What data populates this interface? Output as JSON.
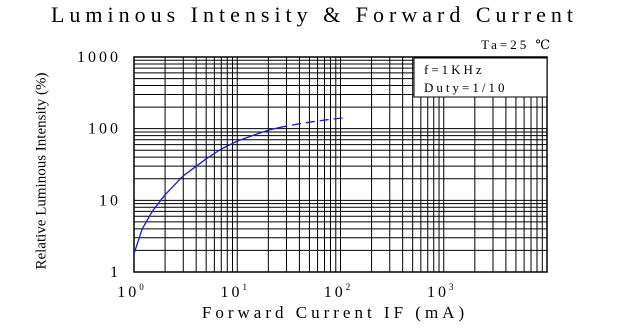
{
  "chart_data": {
    "type": "line",
    "title": "Luminous Intensity & Forward Current",
    "xlabel": "Forward Current IF (mA)",
    "ylabel": "Relative Luminous Intensity (%)",
    "xscale": "log",
    "yscale": "log",
    "xlim": [
      1,
      10000
    ],
    "ylim": [
      1,
      1000
    ],
    "grid": true,
    "x_ticks": [
      {
        "value": 1,
        "base": "10",
        "exp": "0"
      },
      {
        "value": 10,
        "base": "10",
        "exp": "1"
      },
      {
        "value": 100,
        "base": "10",
        "exp": "2"
      },
      {
        "value": 1000,
        "base": "10",
        "exp": "3"
      }
    ],
    "y_ticks": [
      {
        "value": 1,
        "label": "1"
      },
      {
        "value": 10,
        "label": "10"
      },
      {
        "value": 100,
        "label": "100"
      },
      {
        "value": 1000,
        "label": "1000"
      }
    ],
    "conditions": {
      "ta": "Ta=25 ℃",
      "freq": "f=1KHz",
      "duty": "Duty=1/10"
    },
    "series": [
      {
        "color": "#1a1ad0",
        "segments": [
          {
            "style": "solid",
            "x": [
              1,
              1.2,
              1.5,
              2,
              3,
              5,
              7,
              10,
              15,
              20,
              25
            ],
            "y": [
              1.8,
              4,
              7,
              12,
              22,
              38,
              52,
              67,
              83,
              95,
              103
            ]
          },
          {
            "style": "dashed",
            "x": [
              25,
              40,
              60,
              80,
              110
            ],
            "y": [
              103,
              117,
              128,
              135,
              142
            ]
          }
        ]
      }
    ]
  }
}
